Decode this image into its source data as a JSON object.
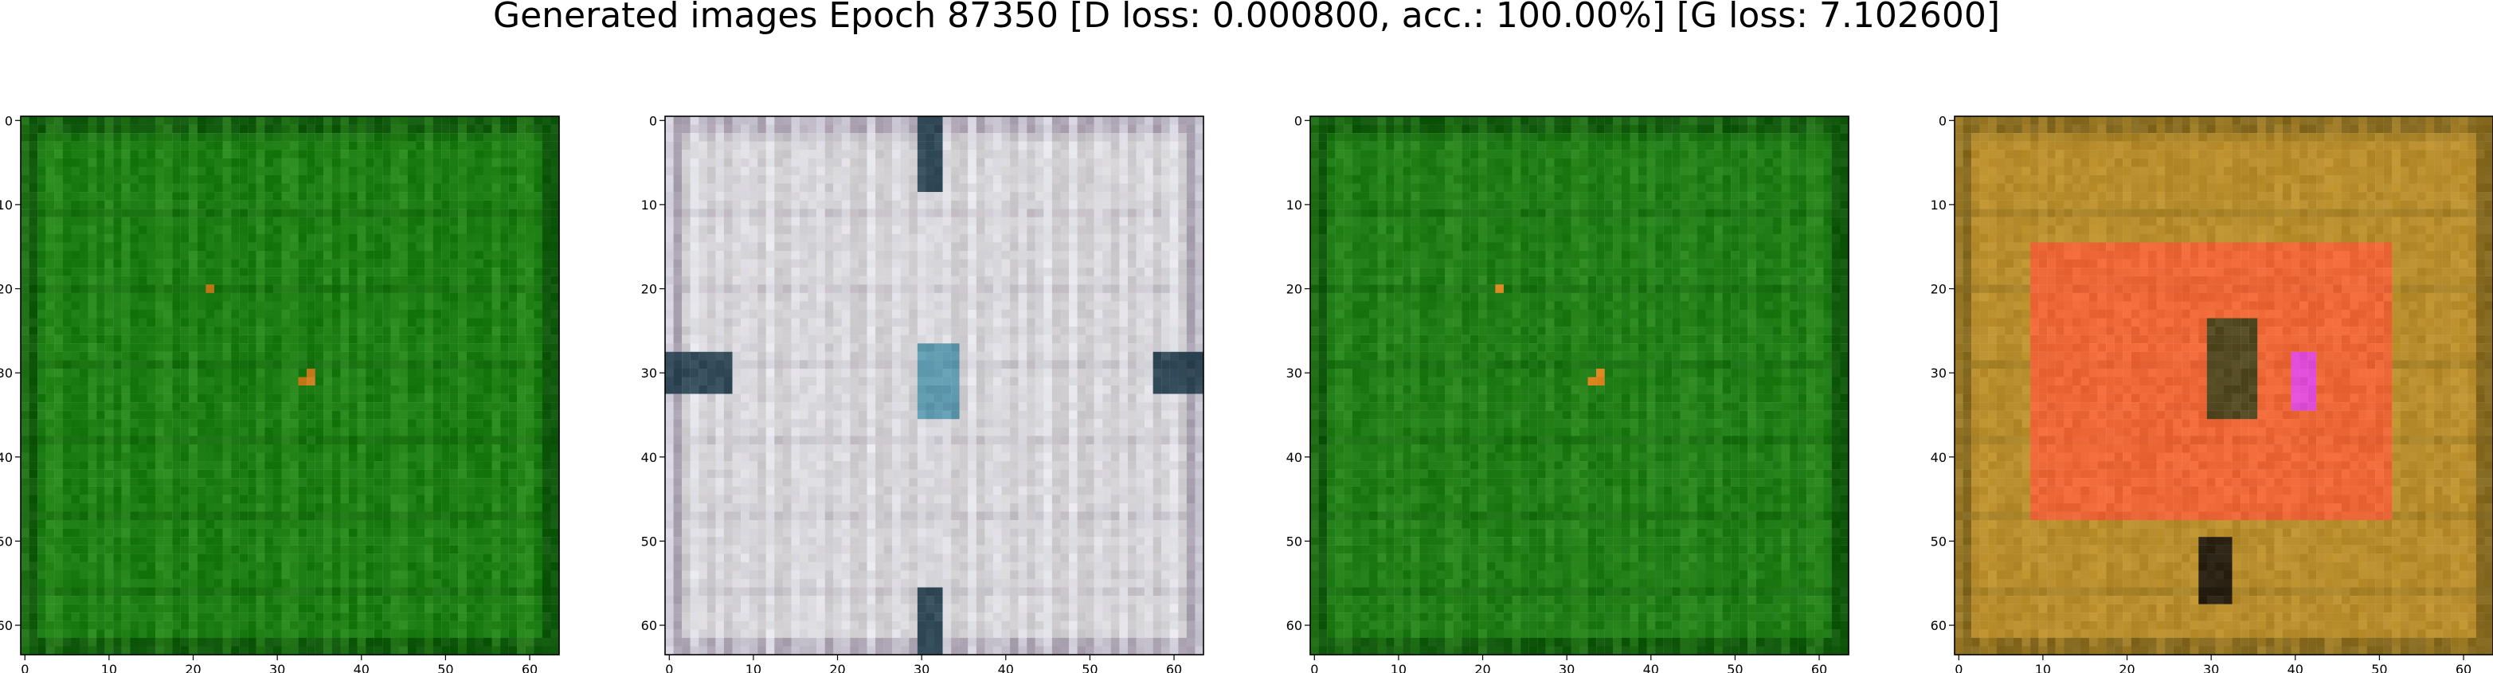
{
  "figure": {
    "suptitle": "Generated images Epoch 87350 [D loss: 0.000800, acc.: 100.00%] [G loss: 7.102600]"
  },
  "axes_ticks": {
    "x": [
      "0",
      "10",
      "20",
      "30",
      "40",
      "50",
      "60"
    ],
    "y": [
      "0",
      "10",
      "20",
      "30",
      "40",
      "50",
      "60"
    ],
    "x_values": [
      0,
      10,
      20,
      30,
      40,
      50,
      60
    ],
    "y_values": [
      0,
      10,
      20,
      30,
      40,
      50,
      60
    ],
    "image_size": 64
  },
  "panels": [
    {
      "id": "panel-1",
      "base_color": "#1a7a12",
      "dominant_description": "green",
      "frame_color": "#0c4a0a",
      "accent_color": "#d07a1a",
      "stripe_color": "#43a12c"
    },
    {
      "id": "panel-2",
      "base_color": "#cfcdcf",
      "dominant_description": "gray-white",
      "frame_color": "#9a8fa3",
      "accent_color": "#0c2a3a",
      "stripe_color": "#e9ecf3"
    },
    {
      "id": "panel-3",
      "base_color": "#1d7a14",
      "dominant_description": "green",
      "frame_color": "#0c4a0a",
      "accent_color": "#e88a22",
      "stripe_color": "#3f9a2a"
    },
    {
      "id": "panel-4",
      "base_color": "#b58b2b",
      "dominant_description": "orange-brown",
      "frame_color": "#6f5a1a",
      "accent_color": "#ff5a3a",
      "stripe_color": "#c79a33"
    }
  ]
}
